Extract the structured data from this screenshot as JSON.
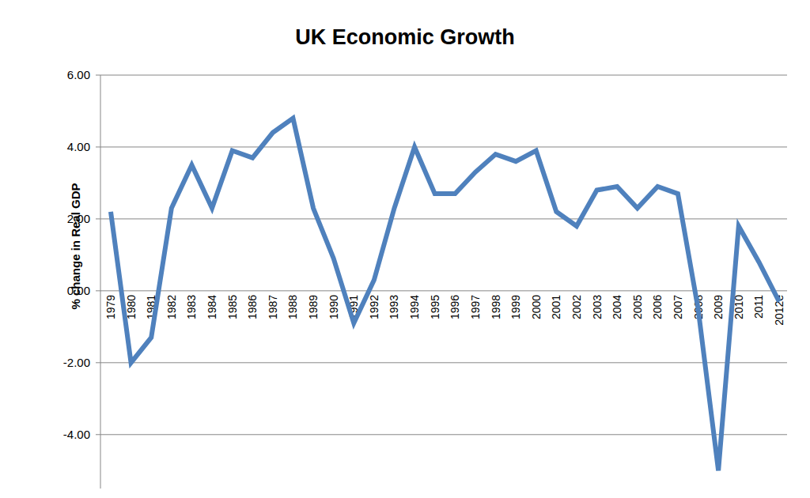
{
  "chart_data": {
    "type": "line",
    "title": "UK Economic Growth",
    "y_label": "% change in Real GDP",
    "categories": [
      "1979",
      "1980",
      "1981",
      "1982",
      "1983",
      "1984",
      "1985",
      "1986",
      "1987",
      "1988",
      "1989",
      "1990",
      "1991",
      "1992",
      "1993",
      "1994",
      "1995",
      "1996",
      "1997",
      "1998",
      "1999",
      "2000",
      "2001",
      "2002",
      "2003",
      "2004",
      "2005",
      "2006",
      "2007",
      "2008",
      "2009",
      "2010",
      "2011",
      "2012e"
    ],
    "values": [
      2.2,
      -2.0,
      -1.3,
      2.3,
      3.5,
      2.3,
      3.9,
      3.7,
      4.4,
      4.8,
      2.3,
      0.9,
      -0.9,
      0.3,
      2.3,
      4.0,
      2.7,
      2.7,
      3.3,
      3.8,
      3.6,
      3.9,
      2.2,
      1.8,
      2.8,
      2.9,
      2.3,
      2.9,
      2.7,
      -0.5,
      -5.0,
      1.8,
      0.8,
      -0.3
    ],
    "color": "#4f81bd",
    "line_style": "solid",
    "ylim": [
      -5.5,
      6
    ],
    "yticks": [
      {
        "value": -4,
        "label": "-4.00"
      },
      {
        "value": -2,
        "label": "-2.00"
      },
      {
        "value": 0,
        "label": "0.00"
      },
      {
        "value": 2,
        "label": "2.00"
      },
      {
        "value": 4,
        "label": "4.00"
      },
      {
        "value": 6,
        "label": "6.00"
      }
    ],
    "grid": true
  }
}
